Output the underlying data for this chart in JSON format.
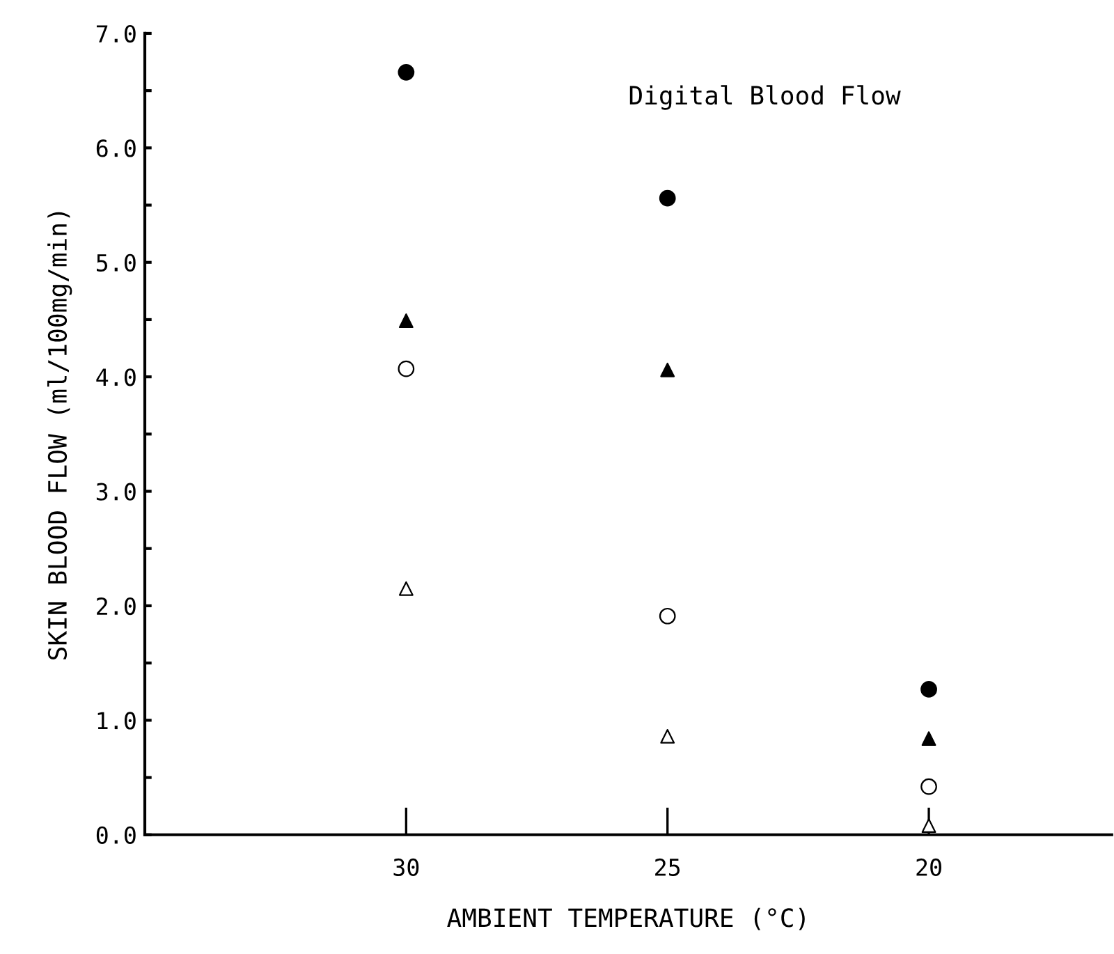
{
  "chart_data": {
    "type": "scatter",
    "title": "Digital Blood Flow",
    "xlabel": "AMBIENT TEMPERATURE (°C)",
    "ylabel": "SKIN BLOOD FLOW (ml/100mg/min)",
    "x": [
      30,
      25,
      20
    ],
    "xlim": [
      35,
      16.5
    ],
    "xticks": [
      30,
      25,
      20
    ],
    "ylim": [
      0,
      7
    ],
    "yticks": [
      {
        "value": 0,
        "label": "0.0"
      },
      {
        "value": 0.5,
        "label": null
      },
      {
        "value": 1,
        "label": "1.0"
      },
      {
        "value": 1.5,
        "label": null
      },
      {
        "value": 2,
        "label": "2.0"
      },
      {
        "value": 2.5,
        "label": null
      },
      {
        "value": 3,
        "label": "3.0"
      },
      {
        "value": 3.5,
        "label": null
      },
      {
        "value": 4,
        "label": "4.0"
      },
      {
        "value": 4.5,
        "label": null
      },
      {
        "value": 5,
        "label": "5.0"
      },
      {
        "value": 5.5,
        "label": null
      },
      {
        "value": 6,
        "label": "6.0"
      },
      {
        "value": 6.5,
        "label": null
      },
      {
        "value": 7,
        "label": "7.0"
      }
    ],
    "grid": false,
    "legend": false,
    "series": [
      {
        "color": "#000000",
        "marker": "circle",
        "values": [
          6.66,
          5.56,
          1.27
        ]
      },
      {
        "color": "#000000",
        "marker": "triangle",
        "values": [
          4.49,
          4.06,
          0.84
        ]
      },
      {
        "color": "#ffffff",
        "marker": "circle",
        "values": [
          4.07,
          1.91,
          0.42
        ]
      },
      {
        "color": "#ffffff",
        "marker": "triangle",
        "values": [
          2.15,
          0.86,
          0.08
        ]
      }
    ]
  }
}
